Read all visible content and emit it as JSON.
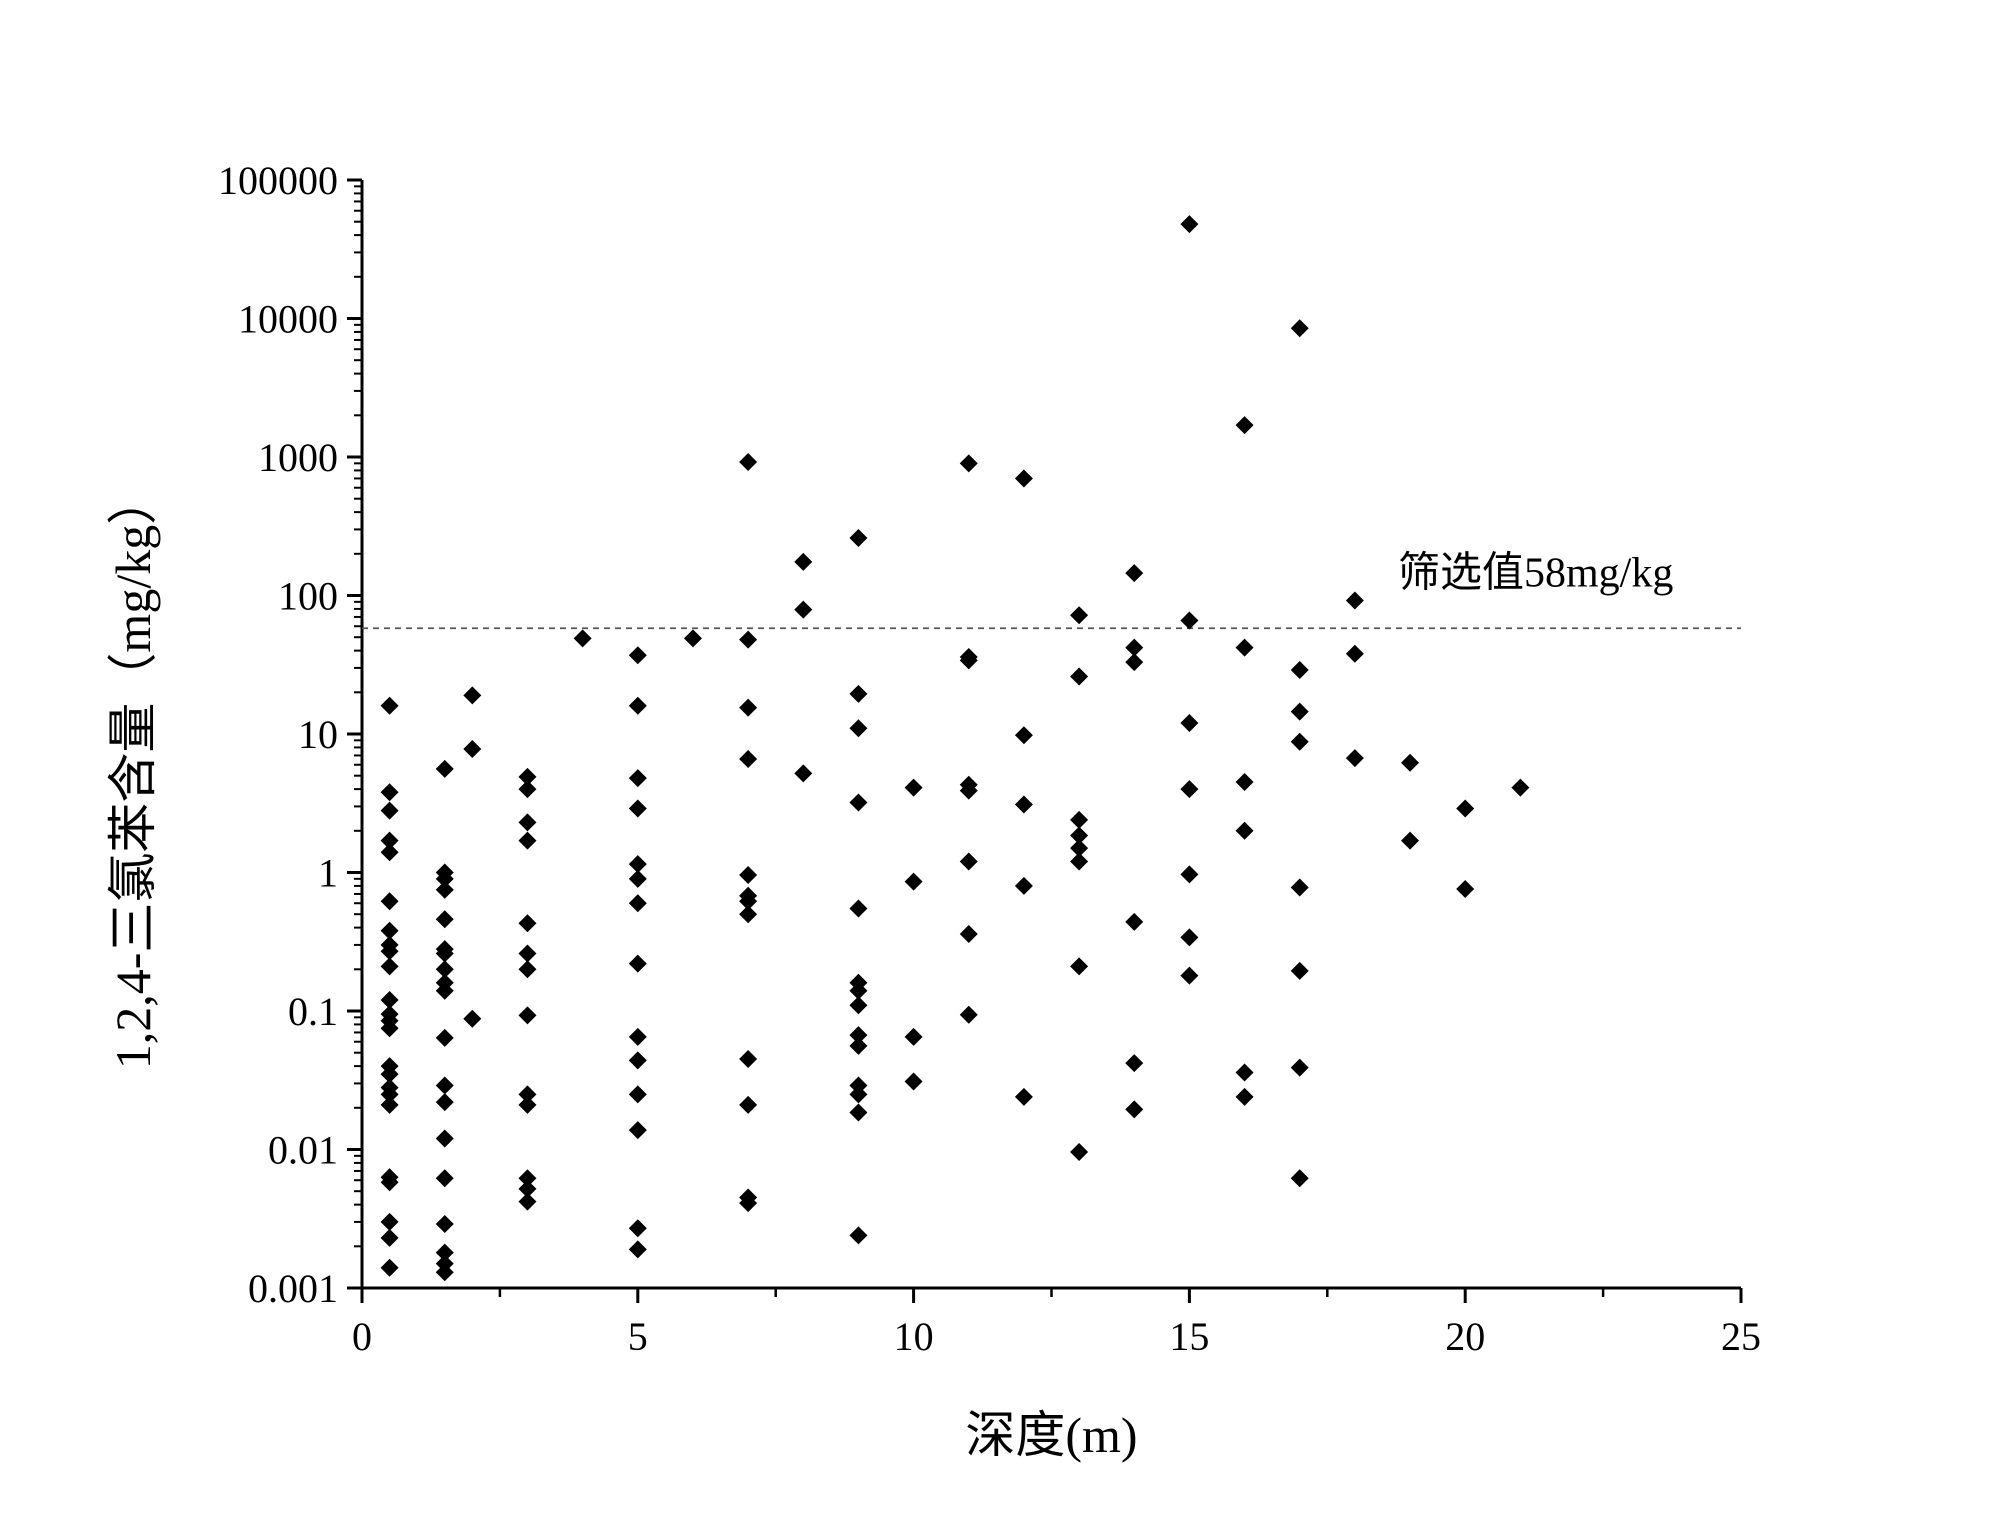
{
  "chart_data": {
    "type": "scatter",
    "xlabel": "深度(m)",
    "ylabel": "1,2,4-三氯苯含量（mg/kg）",
    "xlim": [
      0,
      25
    ],
    "ylim": [
      0.001,
      100000
    ],
    "y_scale": "log",
    "grid": false,
    "legend": "none",
    "x_ticks": [
      "0",
      "5",
      "10",
      "15",
      "20",
      "25"
    ],
    "y_ticks": [
      "0.001",
      "0.01",
      "0.1",
      "1",
      "10",
      "100",
      "1000",
      "10000",
      "100000"
    ],
    "marker": "diamond",
    "marker_color": "#000000",
    "threshold": {
      "value": 58,
      "label": "筛选值58mg/kg",
      "style": "dashed",
      "color": "#555555"
    },
    "points": [
      [
        0.5,
        16
      ],
      [
        0.5,
        3.8
      ],
      [
        0.5,
        2.8
      ],
      [
        0.5,
        1.7
      ],
      [
        0.5,
        1.4
      ],
      [
        0.5,
        0.62
      ],
      [
        0.5,
        0.38
      ],
      [
        0.5,
        0.3
      ],
      [
        0.5,
        0.27
      ],
      [
        0.5,
        0.21
      ],
      [
        0.5,
        0.12
      ],
      [
        0.5,
        0.095
      ],
      [
        0.5,
        0.085
      ],
      [
        0.5,
        0.075
      ],
      [
        0.5,
        0.04
      ],
      [
        0.5,
        0.035
      ],
      [
        0.5,
        0.028
      ],
      [
        0.5,
        0.025
      ],
      [
        0.5,
        0.021
      ],
      [
        0.5,
        0.0063
      ],
      [
        0.5,
        0.0058
      ],
      [
        0.5,
        0.003
      ],
      [
        0.5,
        0.0023
      ],
      [
        0.5,
        0.0014
      ],
      [
        1.5,
        5.6
      ],
      [
        1.5,
        1.0
      ],
      [
        1.5,
        0.9
      ],
      [
        1.5,
        0.75
      ],
      [
        1.5,
        0.46
      ],
      [
        1.5,
        0.28
      ],
      [
        1.5,
        0.26
      ],
      [
        1.5,
        0.2
      ],
      [
        1.5,
        0.16
      ],
      [
        1.5,
        0.14
      ],
      [
        1.5,
        0.064
      ],
      [
        1.5,
        0.029
      ],
      [
        1.5,
        0.022
      ],
      [
        1.5,
        0.012
      ],
      [
        1.5,
        0.0062
      ],
      [
        1.5,
        0.0029
      ],
      [
        1.5,
        0.0018
      ],
      [
        1.5,
        0.0015
      ],
      [
        1.5,
        0.0013
      ],
      [
        2,
        19
      ],
      [
        2,
        7.8
      ],
      [
        2,
        0.088
      ],
      [
        3,
        4.9
      ],
      [
        3,
        4.0
      ],
      [
        3,
        2.3
      ],
      [
        3,
        1.7
      ],
      [
        3,
        0.43
      ],
      [
        3,
        0.26
      ],
      [
        3,
        0.2
      ],
      [
        3,
        0.093
      ],
      [
        3,
        0.025
      ],
      [
        3,
        0.021
      ],
      [
        3,
        0.0062
      ],
      [
        3,
        0.0052
      ],
      [
        3,
        0.0042
      ],
      [
        4,
        49
      ],
      [
        5,
        37
      ],
      [
        5,
        16
      ],
      [
        5,
        4.8
      ],
      [
        5,
        2.9
      ],
      [
        5,
        1.15
      ],
      [
        5,
        0.9
      ],
      [
        5,
        0.6
      ],
      [
        5,
        0.22
      ],
      [
        5,
        0.065
      ],
      [
        5,
        0.044
      ],
      [
        5,
        0.025
      ],
      [
        5,
        0.0138
      ],
      [
        5,
        0.0027
      ],
      [
        5,
        0.0019
      ],
      [
        6,
        49
      ],
      [
        7,
        920
      ],
      [
        7,
        48
      ],
      [
        7,
        15.5
      ],
      [
        7,
        6.6
      ],
      [
        7,
        0.96
      ],
      [
        7,
        0.68
      ],
      [
        7,
        0.62
      ],
      [
        7,
        0.5
      ],
      [
        7,
        0.045
      ],
      [
        7,
        0.021
      ],
      [
        7,
        0.0045
      ],
      [
        7,
        0.0041
      ],
      [
        8,
        175
      ],
      [
        8,
        79
      ],
      [
        8,
        5.2
      ],
      [
        9,
        260
      ],
      [
        9,
        19.5
      ],
      [
        9,
        11
      ],
      [
        9,
        3.2
      ],
      [
        9,
        0.55
      ],
      [
        9,
        0.16
      ],
      [
        9,
        0.14
      ],
      [
        9,
        0.11
      ],
      [
        9,
        0.067
      ],
      [
        9,
        0.056
      ],
      [
        9,
        0.029
      ],
      [
        9,
        0.025
      ],
      [
        9,
        0.0185
      ],
      [
        9,
        0.0024
      ],
      [
        10,
        4.1
      ],
      [
        10,
        0.86
      ],
      [
        10,
        0.065
      ],
      [
        10,
        0.031
      ],
      [
        11,
        900
      ],
      [
        11,
        36
      ],
      [
        11,
        34
      ],
      [
        11,
        4.3
      ],
      [
        11,
        3.9
      ],
      [
        11,
        1.2
      ],
      [
        11,
        0.36
      ],
      [
        11,
        0.094
      ],
      [
        12,
        700
      ],
      [
        12,
        9.8
      ],
      [
        12,
        3.1
      ],
      [
        12,
        0.8
      ],
      [
        12,
        0.024
      ],
      [
        13,
        72
      ],
      [
        13,
        26
      ],
      [
        13,
        2.4
      ],
      [
        13,
        1.85
      ],
      [
        13,
        1.5
      ],
      [
        13,
        1.2
      ],
      [
        13,
        0.21
      ],
      [
        13,
        0.0096
      ],
      [
        14,
        145
      ],
      [
        14,
        42
      ],
      [
        14,
        33
      ],
      [
        14,
        0.44
      ],
      [
        14,
        0.042
      ],
      [
        14,
        0.0195
      ],
      [
        15,
        48000
      ],
      [
        15,
        66
      ],
      [
        15,
        12
      ],
      [
        15,
        4.0
      ],
      [
        15,
        0.97
      ],
      [
        15,
        0.34
      ],
      [
        15,
        0.18
      ],
      [
        16,
        1700
      ],
      [
        16,
        42
      ],
      [
        16,
        4.5
      ],
      [
        16,
        2.0
      ],
      [
        16,
        0.036
      ],
      [
        16,
        0.024
      ],
      [
        17,
        8500
      ],
      [
        17,
        29
      ],
      [
        17,
        14.5
      ],
      [
        17,
        8.8
      ],
      [
        17,
        0.78
      ],
      [
        17,
        0.195
      ],
      [
        17,
        0.039
      ],
      [
        17,
        0.0062
      ],
      [
        18,
        92
      ],
      [
        18,
        38
      ],
      [
        18,
        6.7
      ],
      [
        19,
        6.2
      ],
      [
        19,
        1.7
      ],
      [
        20,
        2.9
      ],
      [
        20,
        0.76
      ],
      [
        21,
        4.1
      ]
    ]
  }
}
